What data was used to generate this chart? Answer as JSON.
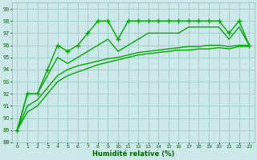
{
  "xlabel": "Humidité relative (%)",
  "bg_color": "#cce8e8",
  "grid_color": "#99cccc",
  "line_color": "#00aa00",
  "xlim": [
    -0.5,
    23.5
  ],
  "ylim": [
    88,
    99.5
  ],
  "yticks": [
    88,
    89,
    90,
    91,
    92,
    93,
    94,
    95,
    96,
    97,
    98,
    99
  ],
  "xticks": [
    0,
    1,
    2,
    3,
    4,
    5,
    6,
    7,
    8,
    9,
    10,
    11,
    12,
    13,
    14,
    15,
    16,
    17,
    18,
    19,
    20,
    21,
    22,
    23
  ],
  "series": [
    {
      "x": [
        0,
        1,
        2,
        3,
        4,
        5,
        6,
        7,
        8,
        9,
        10,
        11,
        12,
        13,
        14,
        15,
        16,
        17,
        18,
        19,
        20,
        21,
        22,
        23
      ],
      "y": [
        89,
        92,
        92,
        94,
        96,
        95.5,
        96,
        97,
        98,
        98,
        96.5,
        98,
        98,
        98,
        98,
        98,
        98,
        98,
        98,
        98,
        98,
        97,
        98,
        96
      ],
      "marker": "+",
      "markersize": 4,
      "linewidth": 1.0
    },
    {
      "x": [
        0,
        1,
        2,
        3,
        4,
        5,
        6,
        7,
        8,
        9,
        10,
        11,
        12,
        13,
        14,
        15,
        16,
        17,
        18,
        19,
        20,
        21,
        22,
        23
      ],
      "y": [
        89,
        92,
        92,
        93.5,
        95,
        94.5,
        95,
        95.5,
        96,
        96.5,
        95.5,
        96,
        96.5,
        97,
        97,
        97,
        97,
        97.5,
        97.5,
        97.5,
        97.5,
        96.5,
        97.5,
        96
      ],
      "marker": null,
      "linewidth": 1.0
    },
    {
      "x": [
        0,
        1,
        2,
        3,
        4,
        5,
        6,
        7,
        8,
        9,
        10,
        11,
        12,
        13,
        14,
        15,
        16,
        17,
        18,
        19,
        20,
        21,
        22,
        23
      ],
      "y": [
        89,
        91,
        91.5,
        92.5,
        93.5,
        94.0,
        94.3,
        94.5,
        94.7,
        94.9,
        95.0,
        95.2,
        95.4,
        95.5,
        95.6,
        95.7,
        95.8,
        95.9,
        95.9,
        96.0,
        96.0,
        95.9,
        96.0,
        96.0
      ],
      "marker": null,
      "linewidth": 1.0
    },
    {
      "x": [
        0,
        1,
        2,
        3,
        4,
        5,
        6,
        7,
        8,
        9,
        10,
        11,
        12,
        13,
        14,
        15,
        16,
        17,
        18,
        19,
        20,
        21,
        22,
        23
      ],
      "y": [
        89,
        90.5,
        91.0,
        92.0,
        93.0,
        93.5,
        93.8,
        94.1,
        94.4,
        94.6,
        94.8,
        95.0,
        95.2,
        95.3,
        95.4,
        95.5,
        95.6,
        95.6,
        95.7,
        95.7,
        95.8,
        95.7,
        95.9,
        95.9
      ],
      "marker": null,
      "linewidth": 1.0
    }
  ]
}
